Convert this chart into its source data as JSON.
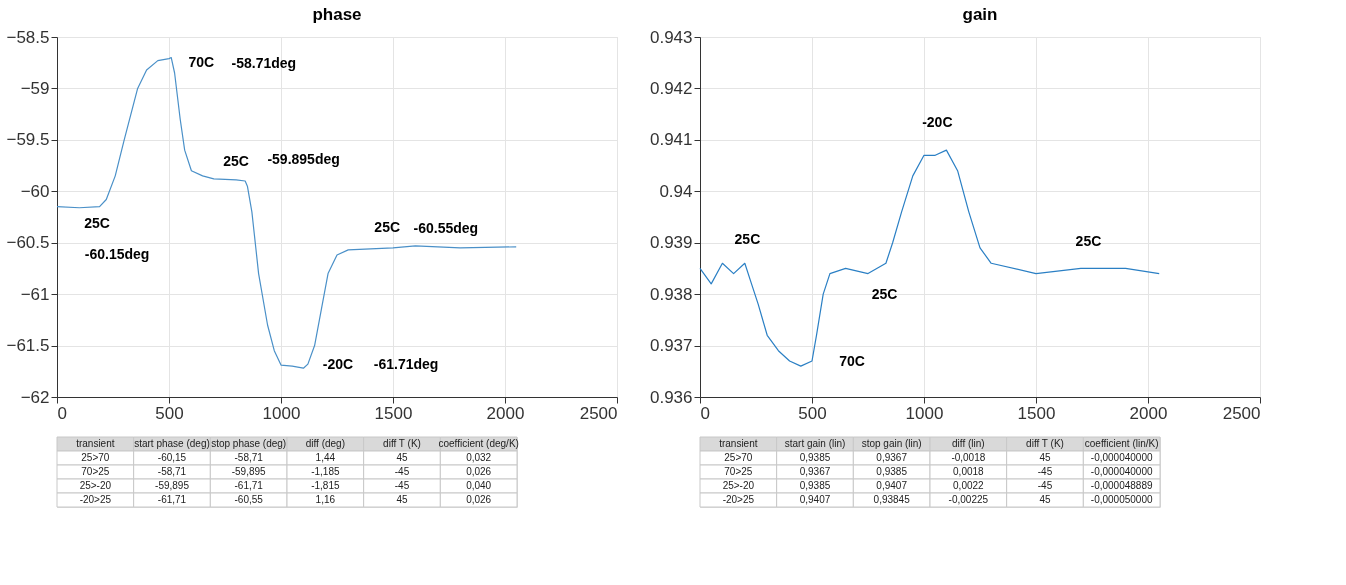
{
  "chart_data": [
    {
      "type": "line",
      "title": "phase",
      "xlim": [
        0,
        2500
      ],
      "xticks": [
        0,
        500,
        1000,
        1500,
        2000,
        2500
      ],
      "ylim": [
        -62,
        -58.5
      ],
      "yticks": [
        -62,
        -61.5,
        -61,
        -60.5,
        -60,
        -59.5,
        -59,
        -58.5
      ],
      "grid": true,
      "legend": false,
      "marker": "none",
      "line_style": "solid",
      "x": [
        0,
        100,
        190,
        220,
        260,
        300,
        330,
        360,
        400,
        450,
        500,
        510,
        525,
        550,
        570,
        600,
        650,
        700,
        800,
        840,
        850,
        870,
        900,
        940,
        970,
        1000,
        1050,
        1100,
        1120,
        1150,
        1180,
        1210,
        1250,
        1300,
        1500,
        1600,
        1800,
        2050
      ],
      "series": [
        {
          "color": "#4a90c8",
          "values": [
            -60.15,
            -60.16,
            -60.15,
            -60.08,
            -59.85,
            -59.5,
            -59.25,
            -59.0,
            -58.82,
            -58.73,
            -58.71,
            -58.7,
            -58.85,
            -59.3,
            -59.6,
            -59.8,
            -59.85,
            -59.88,
            -59.89,
            -59.9,
            -59.95,
            -60.2,
            -60.8,
            -61.3,
            -61.55,
            -61.69,
            -61.7,
            -61.72,
            -61.68,
            -61.5,
            -61.15,
            -60.8,
            -60.62,
            -60.57,
            -60.55,
            -60.53,
            -60.55,
            -60.54
          ]
        }
      ],
      "annotations": [
        "70C",
        "-58.71deg",
        "25C",
        "-59.895deg",
        "25C",
        "-60.15deg",
        "25C",
        "-60.55deg",
        "-20C",
        "-61.71deg",
        "transient",
        "start phase (deg)",
        "stop phase (deg)",
        "diff (deg)",
        "diff T (K)",
        "coefficient (deg/K)",
        "25>70",
        "-60,15",
        "-58,71",
        "1,44",
        "45",
        "0,032",
        "70>25",
        "-58,71",
        "-59,895",
        "-1,185",
        "-45",
        "0,026",
        "25>-20",
        "-59,895",
        "-61,71",
        "-1,815",
        "-45",
        "0,040",
        "-20>25",
        "-61,71",
        "-60,55",
        "1,16",
        "45",
        "0,026"
      ]
    },
    {
      "type": "line",
      "title": "gain",
      "xlim": [
        0,
        2500
      ],
      "xticks": [
        0,
        500,
        1000,
        1500,
        2000,
        2500
      ],
      "ylim": [
        0.936,
        0.943
      ],
      "yticks": [
        0.936,
        0.937,
        0.938,
        0.939,
        0.94,
        0.941,
        0.942,
        0.943
      ],
      "grid": true,
      "legend": false,
      "marker": "none",
      "line_style": "solid",
      "x": [
        0,
        50,
        100,
        150,
        200,
        230,
        260,
        300,
        350,
        400,
        450,
        500,
        520,
        550,
        580,
        650,
        750,
        830,
        860,
        900,
        950,
        1000,
        1050,
        1100,
        1150,
        1200,
        1250,
        1300,
        1500,
        1700,
        1900,
        2050
      ],
      "series": [
        {
          "color": "#2a7fc4",
          "values": [
            0.9385,
            0.9382,
            0.9386,
            0.9384,
            0.9386,
            0.9382,
            0.9378,
            0.9372,
            0.9369,
            0.9367,
            0.9366,
            0.9367,
            0.9372,
            0.938,
            0.9384,
            0.9385,
            0.9384,
            0.9386,
            0.939,
            0.9396,
            0.9403,
            0.9407,
            0.9407,
            0.9408,
            0.9404,
            0.9396,
            0.9389,
            0.9386,
            0.9384,
            0.9385,
            0.9385,
            0.9384
          ]
        }
      ],
      "annotations": [
        "25C",
        "-20C",
        "25C",
        "70C",
        "25C",
        "transient",
        "start gain (lin)",
        "stop gain (lin)",
        "diff (lin)",
        "diff T (K)",
        "coefficient (lin/K)",
        "25>70",
        "0,9385",
        "0,9367",
        "-0,0018",
        "45",
        "-0,000040000",
        "70>25",
        "0,9367",
        "0,9385",
        "0,0018",
        "-45",
        "-0,000040000",
        "25>-20",
        "0,9385",
        "0,9407",
        "0,0022",
        "-45",
        "-0,000048889",
        "-20>25",
        "0,9407",
        "0,93845",
        "-0,00225",
        "45",
        "-0,000050000"
      ]
    }
  ]
}
